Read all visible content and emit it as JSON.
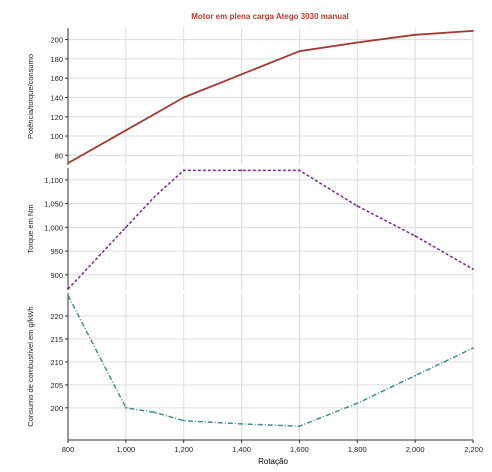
{
  "chart_data": {
    "type": "line",
    "title": "Motor em plena carga Atego 3030 manual",
    "colors": {
      "title": "#c0392b",
      "grid": "#dcdcdc",
      "axis": "#333333",
      "text": "#222222"
    },
    "xlabel": "Rotação",
    "xlim": [
      800,
      2200
    ],
    "x_ticks": [
      "800",
      "1,000",
      "1,200",
      "1,400",
      "1,600",
      "1,800",
      "2,000",
      "2,200"
    ],
    "x_tick_values": [
      800,
      1000,
      1200,
      1400,
      1600,
      1800,
      2000,
      2200
    ],
    "grid": true,
    "panels": [
      {
        "name": "power",
        "ylabel": "Potência/torque/consumo",
        "ylim": [
          70,
          212
        ],
        "y_ticks": [
          "80",
          "100",
          "120",
          "140",
          "160",
          "180",
          "200"
        ],
        "y_tick_values": [
          80,
          100,
          120,
          140,
          160,
          180,
          200
        ],
        "series": [
          {
            "color": "#a33a32",
            "dash": "solid",
            "x": [
              800,
              1000,
              1200,
              1400,
              1600,
              1800,
              2000,
              2200
            ],
            "values": [
              72,
              106,
              140,
              164,
              188,
              197,
              205,
              209
            ]
          }
        ]
      },
      {
        "name": "torque",
        "ylabel": "Torque em Nm",
        "ylim": [
          868,
          1125
        ],
        "y_ticks": [
          "900",
          "950",
          "1,000",
          "1,050",
          "1,100"
        ],
        "y_tick_values": [
          900,
          950,
          1000,
          1050,
          1100
        ],
        "series": [
          {
            "color": "#7b2a8c",
            "dash": "dashed",
            "x": [
              800,
              1000,
              1100,
              1200,
              1400,
              1600,
              1800,
              2000,
              2200
            ],
            "values": [
              870,
              1000,
              1065,
              1120,
              1120,
              1120,
              1045,
              982,
              912
            ]
          }
        ]
      },
      {
        "name": "consumption",
        "ylabel": "Consumo de combustível em g/kWh",
        "ylim": [
          193,
          225
        ],
        "y_ticks": [
          "200",
          "205",
          "210",
          "215",
          "220"
        ],
        "y_tick_values": [
          200,
          205,
          210,
          215,
          220
        ],
        "series": [
          {
            "color": "#3f8f8f",
            "dash": "dashdot",
            "x": [
              800,
              1000,
              1100,
              1200,
              1400,
              1600,
              1800,
              2000,
              2100,
              2200
            ],
            "values": [
              224.5,
              200,
              199,
              197.2,
              196.5,
              196,
              201,
              207,
              210,
              213
            ]
          }
        ]
      }
    ]
  }
}
